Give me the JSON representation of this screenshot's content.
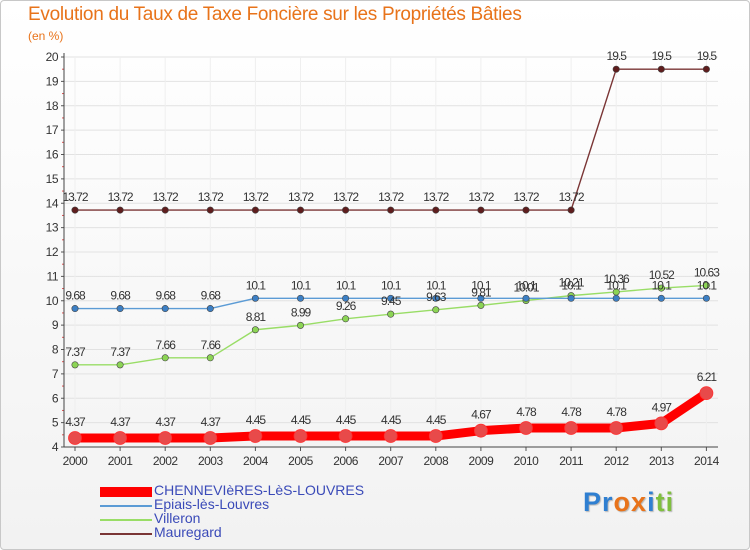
{
  "title": "Evolution du Taux de Taxe Foncière sur les Propriétés Bâties",
  "subtitle": "(en %)",
  "brand": {
    "letters": [
      "P",
      "r",
      "o",
      "x",
      "i",
      "t",
      "i"
    ],
    "colors": [
      "#2f7fd1",
      "#2f7fd1",
      "#e8731a",
      "#e8731a",
      "#2f7fd1",
      "#7fbf3f",
      "#7fbf3f"
    ]
  },
  "chart_data": {
    "type": "line",
    "title": "Evolution du Taux de Taxe Foncière sur les Propriétés Bâties",
    "ylabel": "(en %)",
    "xlabel": "",
    "ylim": [
      4,
      20
    ],
    "yticks": [
      4,
      5,
      6,
      7,
      8,
      9,
      10,
      11,
      12,
      13,
      14,
      15,
      16,
      17,
      18,
      19,
      20
    ],
    "categories": [
      "2000",
      "2001",
      "2002",
      "2003",
      "2004",
      "2005",
      "2006",
      "2007",
      "2008",
      "2009",
      "2010",
      "2011",
      "2012",
      "2013",
      "2014"
    ],
    "series": [
      {
        "name": "CHENNEVIèRES-LèS-LOUVRES",
        "color": "#ff0000",
        "lineColor": "#ff0000",
        "markerColor": "#e84a4a",
        "labels": [
          "4.37",
          "4.37",
          "4.37",
          "4.37",
          "4.45",
          "4.45",
          "4.45",
          "4.45",
          "4.45",
          "4.67",
          "4.78",
          "4.78",
          "4.78",
          "4.97",
          "6.21"
        ],
        "values": [
          4.37,
          4.37,
          4.37,
          4.37,
          4.45,
          4.45,
          4.45,
          4.45,
          4.45,
          4.67,
          4.78,
          4.78,
          4.78,
          4.97,
          6.21
        ]
      },
      {
        "name": "Epiais-lès-Louvres",
        "color": "#5b9bd5",
        "lineColor": "#5b9bd5",
        "markerColor": "#3c7fc4",
        "labels": [
          "9.68",
          "9.68",
          "9.68",
          "9.68",
          "10.1",
          "10.1",
          "10.1",
          "10.1",
          "10.1",
          "10.1",
          "10.1",
          "10.1",
          "10.1",
          "10.1",
          "10.1"
        ],
        "values": [
          9.68,
          9.68,
          9.68,
          9.68,
          10.1,
          10.1,
          10.1,
          10.1,
          10.1,
          10.1,
          10.1,
          10.1,
          10.1,
          10.1,
          10.1
        ]
      },
      {
        "name": "Villeron",
        "color": "#99dd66",
        "lineColor": "#99dd66",
        "markerColor": "#8cd455",
        "labels": [
          "7.37",
          "7.37",
          "7.66",
          "7.66",
          "8.81",
          "8.99",
          "9.26",
          "9.45",
          "9.63",
          "9.81",
          "10.01",
          "10.21",
          "10.36",
          "10.52",
          "10.63"
        ],
        "values": [
          7.37,
          7.37,
          7.66,
          7.66,
          8.81,
          8.99,
          9.26,
          9.45,
          9.63,
          9.81,
          10.01,
          10.21,
          10.36,
          10.52,
          10.63
        ]
      },
      {
        "name": "Mauregard",
        "color": "#7a3535",
        "lineColor": "#7a3535",
        "markerColor": "#5e1d1d",
        "labels": [
          "13.72",
          "13.72",
          "13.72",
          "13.72",
          "13.72",
          "13.72",
          "13.72",
          "13.72",
          "13.72",
          "13.72",
          "13.72",
          "13.72",
          "19.5",
          "19.5",
          "19.5"
        ],
        "values": [
          13.72,
          13.72,
          13.72,
          13.72,
          13.72,
          13.72,
          13.72,
          13.72,
          13.72,
          13.72,
          13.72,
          13.72,
          19.5,
          19.5,
          19.5
        ]
      }
    ]
  }
}
